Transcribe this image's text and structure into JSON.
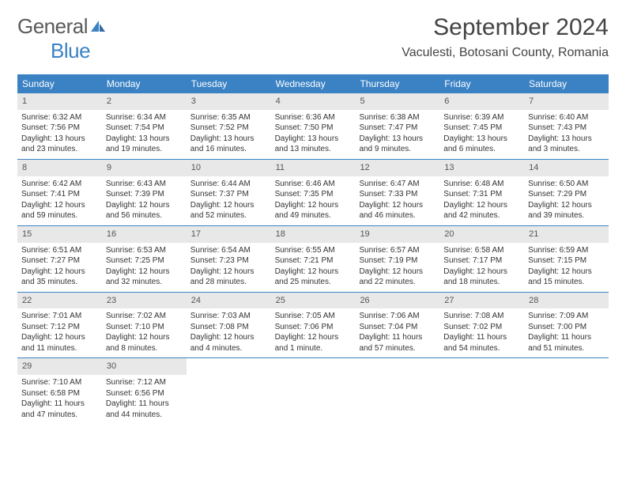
{
  "brand": {
    "general": "General",
    "blue": "Blue"
  },
  "header": {
    "month_title": "September 2024",
    "location": "Vaculesti, Botosani County, Romania"
  },
  "colors": {
    "accent": "#3b82c4",
    "weekday_bg": "#3b82c4",
    "weekday_fg": "#ffffff",
    "daynum_bg": "#e8e8e8",
    "text": "#333333"
  },
  "weekdays": [
    "Sunday",
    "Monday",
    "Tuesday",
    "Wednesday",
    "Thursday",
    "Friday",
    "Saturday"
  ],
  "weeks": [
    [
      {
        "n": "1",
        "sunrise": "Sunrise: 6:32 AM",
        "sunset": "Sunset: 7:56 PM",
        "d1": "Daylight: 13 hours",
        "d2": "and 23 minutes."
      },
      {
        "n": "2",
        "sunrise": "Sunrise: 6:34 AM",
        "sunset": "Sunset: 7:54 PM",
        "d1": "Daylight: 13 hours",
        "d2": "and 19 minutes."
      },
      {
        "n": "3",
        "sunrise": "Sunrise: 6:35 AM",
        "sunset": "Sunset: 7:52 PM",
        "d1": "Daylight: 13 hours",
        "d2": "and 16 minutes."
      },
      {
        "n": "4",
        "sunrise": "Sunrise: 6:36 AM",
        "sunset": "Sunset: 7:50 PM",
        "d1": "Daylight: 13 hours",
        "d2": "and 13 minutes."
      },
      {
        "n": "5",
        "sunrise": "Sunrise: 6:38 AM",
        "sunset": "Sunset: 7:47 PM",
        "d1": "Daylight: 13 hours",
        "d2": "and 9 minutes."
      },
      {
        "n": "6",
        "sunrise": "Sunrise: 6:39 AM",
        "sunset": "Sunset: 7:45 PM",
        "d1": "Daylight: 13 hours",
        "d2": "and 6 minutes."
      },
      {
        "n": "7",
        "sunrise": "Sunrise: 6:40 AM",
        "sunset": "Sunset: 7:43 PM",
        "d1": "Daylight: 13 hours",
        "d2": "and 3 minutes."
      }
    ],
    [
      {
        "n": "8",
        "sunrise": "Sunrise: 6:42 AM",
        "sunset": "Sunset: 7:41 PM",
        "d1": "Daylight: 12 hours",
        "d2": "and 59 minutes."
      },
      {
        "n": "9",
        "sunrise": "Sunrise: 6:43 AM",
        "sunset": "Sunset: 7:39 PM",
        "d1": "Daylight: 12 hours",
        "d2": "and 56 minutes."
      },
      {
        "n": "10",
        "sunrise": "Sunrise: 6:44 AM",
        "sunset": "Sunset: 7:37 PM",
        "d1": "Daylight: 12 hours",
        "d2": "and 52 minutes."
      },
      {
        "n": "11",
        "sunrise": "Sunrise: 6:46 AM",
        "sunset": "Sunset: 7:35 PM",
        "d1": "Daylight: 12 hours",
        "d2": "and 49 minutes."
      },
      {
        "n": "12",
        "sunrise": "Sunrise: 6:47 AM",
        "sunset": "Sunset: 7:33 PM",
        "d1": "Daylight: 12 hours",
        "d2": "and 46 minutes."
      },
      {
        "n": "13",
        "sunrise": "Sunrise: 6:48 AM",
        "sunset": "Sunset: 7:31 PM",
        "d1": "Daylight: 12 hours",
        "d2": "and 42 minutes."
      },
      {
        "n": "14",
        "sunrise": "Sunrise: 6:50 AM",
        "sunset": "Sunset: 7:29 PM",
        "d1": "Daylight: 12 hours",
        "d2": "and 39 minutes."
      }
    ],
    [
      {
        "n": "15",
        "sunrise": "Sunrise: 6:51 AM",
        "sunset": "Sunset: 7:27 PM",
        "d1": "Daylight: 12 hours",
        "d2": "and 35 minutes."
      },
      {
        "n": "16",
        "sunrise": "Sunrise: 6:53 AM",
        "sunset": "Sunset: 7:25 PM",
        "d1": "Daylight: 12 hours",
        "d2": "and 32 minutes."
      },
      {
        "n": "17",
        "sunrise": "Sunrise: 6:54 AM",
        "sunset": "Sunset: 7:23 PM",
        "d1": "Daylight: 12 hours",
        "d2": "and 28 minutes."
      },
      {
        "n": "18",
        "sunrise": "Sunrise: 6:55 AM",
        "sunset": "Sunset: 7:21 PM",
        "d1": "Daylight: 12 hours",
        "d2": "and 25 minutes."
      },
      {
        "n": "19",
        "sunrise": "Sunrise: 6:57 AM",
        "sunset": "Sunset: 7:19 PM",
        "d1": "Daylight: 12 hours",
        "d2": "and 22 minutes."
      },
      {
        "n": "20",
        "sunrise": "Sunrise: 6:58 AM",
        "sunset": "Sunset: 7:17 PM",
        "d1": "Daylight: 12 hours",
        "d2": "and 18 minutes."
      },
      {
        "n": "21",
        "sunrise": "Sunrise: 6:59 AM",
        "sunset": "Sunset: 7:15 PM",
        "d1": "Daylight: 12 hours",
        "d2": "and 15 minutes."
      }
    ],
    [
      {
        "n": "22",
        "sunrise": "Sunrise: 7:01 AM",
        "sunset": "Sunset: 7:12 PM",
        "d1": "Daylight: 12 hours",
        "d2": "and 11 minutes."
      },
      {
        "n": "23",
        "sunrise": "Sunrise: 7:02 AM",
        "sunset": "Sunset: 7:10 PM",
        "d1": "Daylight: 12 hours",
        "d2": "and 8 minutes."
      },
      {
        "n": "24",
        "sunrise": "Sunrise: 7:03 AM",
        "sunset": "Sunset: 7:08 PM",
        "d1": "Daylight: 12 hours",
        "d2": "and 4 minutes."
      },
      {
        "n": "25",
        "sunrise": "Sunrise: 7:05 AM",
        "sunset": "Sunset: 7:06 PM",
        "d1": "Daylight: 12 hours",
        "d2": "and 1 minute."
      },
      {
        "n": "26",
        "sunrise": "Sunrise: 7:06 AM",
        "sunset": "Sunset: 7:04 PM",
        "d1": "Daylight: 11 hours",
        "d2": "and 57 minutes."
      },
      {
        "n": "27",
        "sunrise": "Sunrise: 7:08 AM",
        "sunset": "Sunset: 7:02 PM",
        "d1": "Daylight: 11 hours",
        "d2": "and 54 minutes."
      },
      {
        "n": "28",
        "sunrise": "Sunrise: 7:09 AM",
        "sunset": "Sunset: 7:00 PM",
        "d1": "Daylight: 11 hours",
        "d2": "and 51 minutes."
      }
    ],
    [
      {
        "n": "29",
        "sunrise": "Sunrise: 7:10 AM",
        "sunset": "Sunset: 6:58 PM",
        "d1": "Daylight: 11 hours",
        "d2": "and 47 minutes."
      },
      {
        "n": "30",
        "sunrise": "Sunrise: 7:12 AM",
        "sunset": "Sunset: 6:56 PM",
        "d1": "Daylight: 11 hours",
        "d2": "and 44 minutes."
      },
      null,
      null,
      null,
      null,
      null
    ]
  ]
}
